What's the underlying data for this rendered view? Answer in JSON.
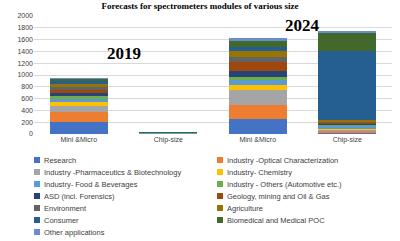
{
  "chart_data": {
    "type": "bar",
    "stacked": true,
    "grid": true,
    "legend": "bottom",
    "title": "Forecasts for spectrometers modules of various size",
    "annotations": [
      "2019",
      "2024"
    ],
    "categories": [
      "Mini &Micro",
      "Chip-size",
      "Mini &Micro",
      "Chip-size"
    ],
    "ylim": [
      0,
      2000
    ],
    "yticks": [
      0,
      200,
      400,
      600,
      800,
      1000,
      1200,
      1400,
      1600,
      1800,
      2000
    ],
    "series": [
      {
        "name": "Research",
        "color": "#4472C4",
        "values": [
          200,
          2,
          250,
          20
        ]
      },
      {
        "name": "Industry -Optical Characterization",
        "color": "#ED7D31",
        "values": [
          180,
          2,
          250,
          30
        ]
      },
      {
        "name": "Industry -Pharmaceutics & Biotechnology",
        "color": "#A5A5A5",
        "values": [
          100,
          2,
          250,
          20
        ]
      },
      {
        "name": "Industry- Chemistry",
        "color": "#FFC000",
        "values": [
          60,
          2,
          80,
          20
        ]
      },
      {
        "name": "Industry- Food & Beverages",
        "color": "#5B9BD5",
        "values": [
          50,
          2,
          80,
          40
        ]
      },
      {
        "name": "Industry - Others (Automotive etc.)",
        "color": "#70AD47",
        "values": [
          50,
          2,
          60,
          20
        ]
      },
      {
        "name": "ASD (incl. Forensics)",
        "color": "#264478",
        "values": [
          60,
          2,
          100,
          20
        ]
      },
      {
        "name": "Geology, mining and Oil & Gas",
        "color": "#9E480E",
        "values": [
          50,
          2,
          150,
          10
        ]
      },
      {
        "name": "Environment",
        "color": "#636363",
        "values": [
          50,
          2,
          80,
          20
        ]
      },
      {
        "name": "Agriculture",
        "color": "#997300",
        "values": [
          50,
          2,
          100,
          30
        ]
      },
      {
        "name": "Consumer",
        "color": "#255E91",
        "values": [
          50,
          5,
          80,
          1180
        ]
      },
      {
        "name": "Biomedical and Medical POC",
        "color": "#43682B",
        "values": [
          30,
          3,
          100,
          300
        ]
      },
      {
        "name": "Other applications",
        "color": "#698ED0",
        "values": [
          20,
          2,
          40,
          40
        ]
      }
    ]
  }
}
